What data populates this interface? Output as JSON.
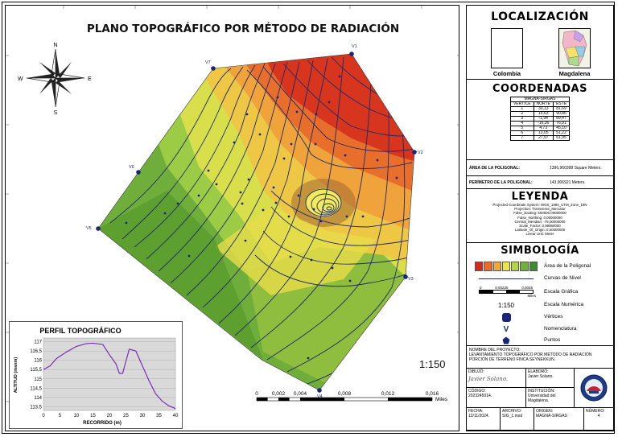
{
  "map": {
    "title": "PLANO TOPOGRÁFICO POR MÉTODO DE RADIACIÓN",
    "compass_labels": {
      "n": "N",
      "s": "S",
      "e": "E",
      "w": "W"
    },
    "vertices": [
      {
        "id": "v1",
        "label": "V1"
      },
      {
        "id": "v2",
        "label": "V2"
      },
      {
        "id": "v3",
        "label": "V3"
      },
      {
        "id": "v4",
        "label": "V4"
      },
      {
        "id": "v5",
        "label": "V5"
      },
      {
        "id": "v6",
        "label": "V6"
      },
      {
        "id": "v7",
        "label": "V7"
      }
    ],
    "scale_text": "1:150",
    "scale_bar": {
      "ticks": [
        "0",
        "0,002",
        "0,004",
        "0,008",
        "0,012",
        "0,016"
      ],
      "unit": "Miles"
    }
  },
  "profile": {
    "title": "PERFIL TOPOGRÁFICO",
    "xlabel": "RECORRIDO (m)",
    "ylabel": "ALTITUD (msnm)",
    "x_ticks": [
      "0",
      "5",
      "10",
      "15",
      "20",
      "25",
      "30",
      "35",
      "40"
    ],
    "y_ticks": [
      "117",
      "116,5",
      "116",
      "115,5",
      "115",
      "114,5",
      "114",
      "113,5"
    ],
    "line_color": "#7a2fb5"
  },
  "chart_data": {
    "type": "line",
    "title": "PERFIL TOPOGRÁFICO",
    "xlabel": "RECORRIDO (m)",
    "ylabel": "ALTITUD (msnm)",
    "xlim": [
      0,
      40
    ],
    "ylim": [
      113.3,
      117.2
    ],
    "grid": true,
    "series": [
      {
        "x": [
          0,
          2,
          4,
          7,
          10,
          13,
          15,
          18,
          20,
          22,
          23,
          24,
          26,
          28,
          30,
          32,
          34,
          36,
          38,
          40
        ],
        "y": [
          115.5,
          115.7,
          116.1,
          116.45,
          116.75,
          116.9,
          116.92,
          116.85,
          116.3,
          115.8,
          115.3,
          115.3,
          116.6,
          116.5,
          115.7,
          114.9,
          114.2,
          113.8,
          113.55,
          113.4
        ]
      }
    ]
  },
  "panel": {
    "localizacion": {
      "title": "LOCALIZACIÓN",
      "left_caption": "Colombia",
      "right_caption": "Magdalena"
    },
    "coordenadas": {
      "title": "COORDENADAS",
      "table_title": "MAGNA-SIRGAS",
      "headers": [
        "VERTICE",
        "NORTE",
        "ESTE"
      ],
      "rows": [
        [
          "1",
          "30,13",
          "81,69"
        ],
        [
          "2",
          "15,63",
          "90,86"
        ],
        [
          "3",
          "-1,94",
          "89,47"
        ],
        [
          "4",
          "-16,36",
          "76,91"
        ],
        [
          "5",
          "4,73",
          "45,10"
        ],
        [
          "6",
          "13,05",
          "51,22"
        ],
        [
          "7",
          "27,97",
          "61,95"
        ]
      ]
    },
    "area": {
      "label": "ÁREA DE LA POLIGONAL:",
      "value": "1396,960398 Square Meters."
    },
    "perimetro": {
      "label": "PERÍMETRO DE LA POLIGONAL:",
      "value": "143,906921 Meters."
    },
    "leyenda": {
      "title": "LEYENDA",
      "lines": [
        "Projected Coordinate System: WGS_1984_UTM_Zone_18N",
        "Projection: Transverse_Mercator",
        "False_Easting: 500000,00000000",
        "False_Northing: 0,00000000",
        "Central_Meridian: -75,00000000",
        "Scale_Factor: 0,99960000",
        "Latitude_Of_Origin: 0,00000000",
        "Linear Unit: Meter"
      ]
    },
    "simbologia": {
      "title": "SIMBOLOGÍA",
      "ramp_colors": [
        "#d7281b",
        "#ee6a2a",
        "#f0a83a",
        "#ece44a",
        "#b2d64a",
        "#6fb23b",
        "#3c8e2a"
      ],
      "items": [
        "Área de la Poligonal",
        "Curvas de Nivel",
        "Escala Gráfica",
        "Escala Numérica",
        "Vértices",
        "Nomenclatura",
        "Puntos"
      ],
      "scale_bar_ticks": [
        "0",
        "0,00225",
        "0,0045"
      ],
      "scale_bar_unit": "Miles",
      "numeric_scale": "1:150",
      "nomenclature_symbol": "V"
    },
    "proyecto": {
      "label": "NOMBRE DEL PROYECTO:",
      "value": "LEVANTAMIENTO TOPOGRÁFICO POR MÉTODO DE RADIACIÓN PORCIÓN DE TERRENO FINCA SEYNEKKUN."
    },
    "dibujo": {
      "label": "DIBUJÓ:",
      "signature": "Javier Solano."
    },
    "elaboro": {
      "label": "ELABORÓ:",
      "value": "Javier Solano."
    },
    "codigo": {
      "label": "CÓDIGO:",
      "value": "2023245014."
    },
    "institucion": {
      "label": "INSTITUCIÓN:",
      "value": "Universidad del Magdalena."
    },
    "fecha": {
      "label": "FECHA:",
      "value": "12/11/2024."
    },
    "archivo": {
      "label": "ARCHIVO:",
      "value": "SIG_1.mxd"
    },
    "origen": {
      "label": "ORIGEN:",
      "value": "MAGNA-SIRGAS"
    },
    "numero": {
      "label": "NÚMERO:",
      "value": "4"
    }
  }
}
